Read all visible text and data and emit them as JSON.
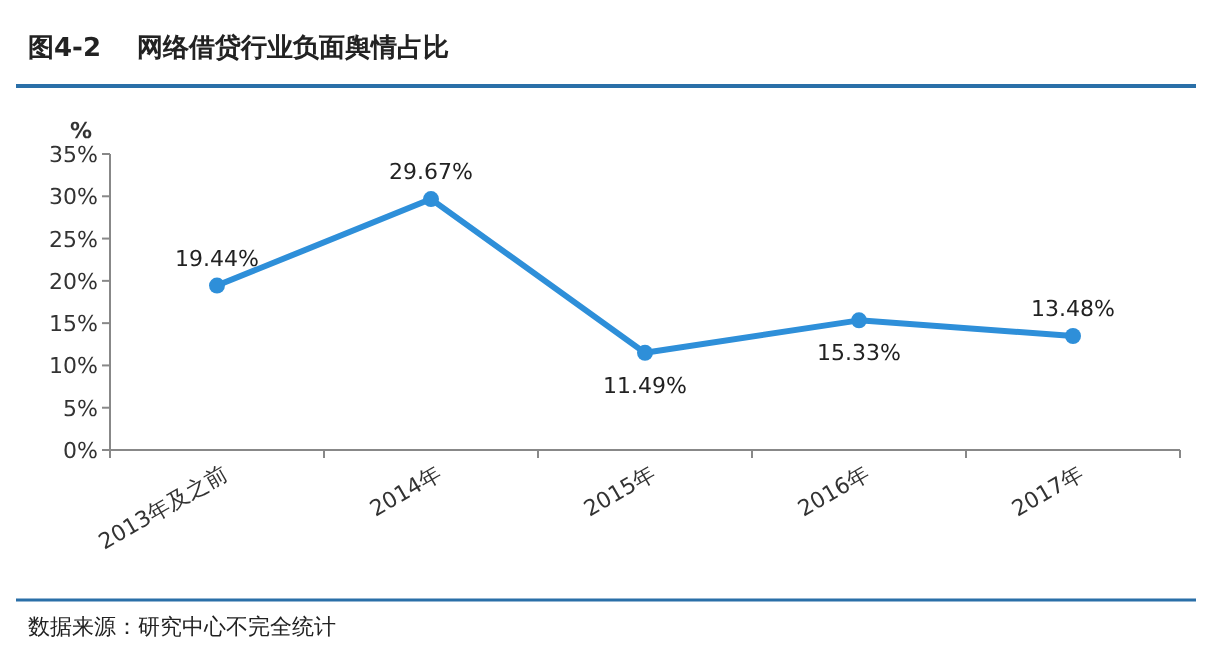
{
  "chart_data": {
    "type": "line",
    "title": "图4-2    网络借贷行业负面舆情占比",
    "ylabel": "%",
    "categories": [
      "2013年及之前",
      "2014年",
      "2015年",
      "2016年",
      "2017年"
    ],
    "series": [
      {
        "color": "#2e8fd9",
        "values": [
          19.44,
          29.67,
          11.49,
          15.33,
          13.48
        ],
        "value_labels": [
          "19.44%",
          "29.67%",
          "11.49%",
          "15.33%",
          "13.48%"
        ]
      }
    ],
    "ylim": [
      0,
      35
    ],
    "yticks": [
      {
        "value": 0,
        "label": "0%"
      },
      {
        "value": 5,
        "label": "5%"
      },
      {
        "value": 10,
        "label": "10%"
      },
      {
        "value": 15,
        "label": "15%"
      },
      {
        "value": 20,
        "label": "20%"
      },
      {
        "value": 25,
        "label": "25%"
      },
      {
        "value": 30,
        "label": "30%"
      },
      {
        "value": 35,
        "label": "35%"
      }
    ],
    "marker": "circle",
    "line_style": "solid",
    "grid": false,
    "annotations": [
      "数据来源：研究中心不完全统计"
    ]
  }
}
